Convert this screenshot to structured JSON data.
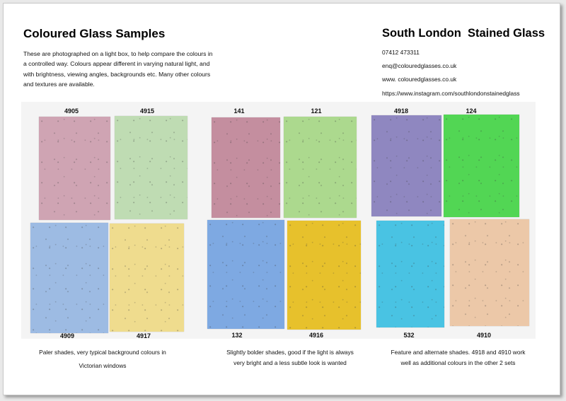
{
  "header": {
    "title": "Coloured Glass Samples",
    "intro": "These are photographed on a light box, to help compare the colours in a controlled way.  Colours appear different in varying natural light, and with brightness, viewing angles, backgrounds etc.  Many other colours and textures are available."
  },
  "contact": {
    "company": "South London  Stained Glass",
    "phone": "07412 473311",
    "email": "enq@colouredglasses.co.uk",
    "website": "www. colouredglasses.co.uk",
    "instagram": "https://www.instagram.com/southlondonstainedglass"
  },
  "samples": [
    {
      "code": "4905",
      "color": "#cfa4b3"
    },
    {
      "code": "4915",
      "color": "#bfdcb3"
    },
    {
      "code": "4909",
      "color": "#9dbbe3"
    },
    {
      "code": "4917",
      "color": "#efdc8e"
    },
    {
      "code": "141",
      "color": "#c48e9f"
    },
    {
      "code": "121",
      "color": "#acd98e"
    },
    {
      "code": "132",
      "color": "#7ea9e2"
    },
    {
      "code": "4916",
      "color": "#e7c12c"
    },
    {
      "code": "4918",
      "color": "#8f87c0"
    },
    {
      "code": "124",
      "color": "#52d654"
    },
    {
      "code": "532",
      "color": "#49c3e3"
    },
    {
      "code": "4910",
      "color": "#ecc8a8"
    }
  ],
  "captions": {
    "set1_line1": "Paler shades, very typical background colours in",
    "set1_line2": "Victorian windows",
    "set2_line1": "Slightly bolder shades, good if the light is always",
    "set2_line2": "very bright and a less subtle look is wanted",
    "set3_line1": "Feature and alternate shades.  4918 and 4910 work",
    "set3_line2": "well as additional colours in the other 2 sets"
  }
}
